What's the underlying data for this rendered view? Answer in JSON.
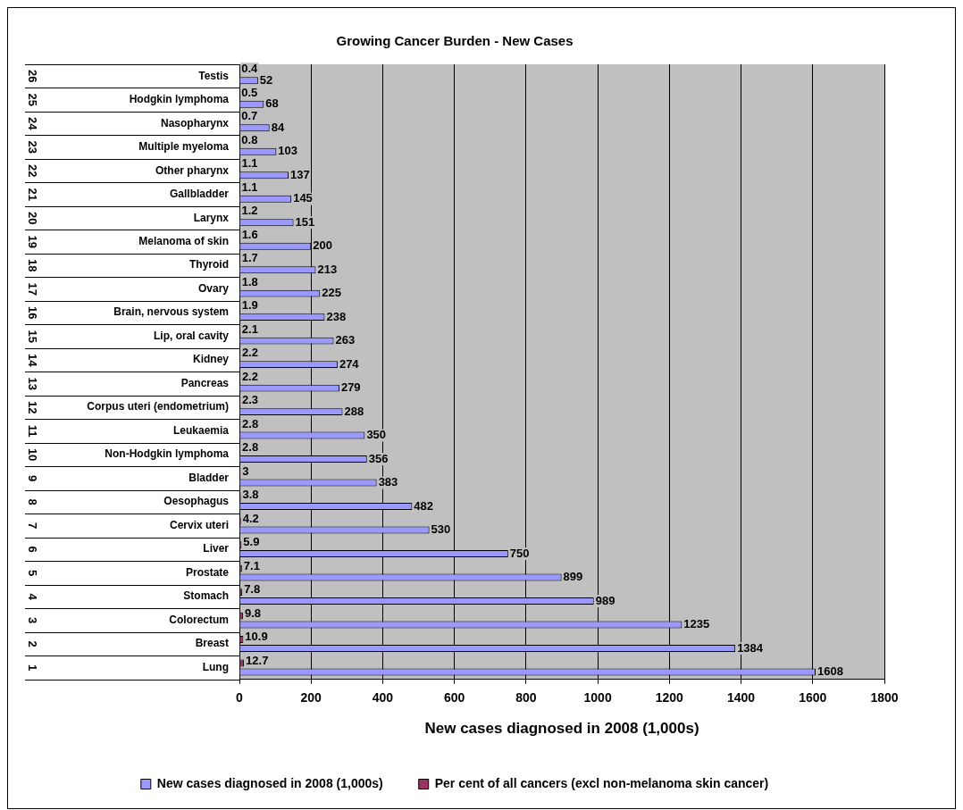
{
  "chart_data": {
    "type": "bar",
    "orientation": "horizontal",
    "title": "Growing Cancer Burden - New Cases",
    "xlabel": "New cases diagnosed in 2008 (1,000s)",
    "categories": [
      "Testis",
      "Hodgkin lymphoma",
      "Nasopharynx",
      "Multiple myeloma",
      "Other pharynx",
      "Gallbladder",
      "Larynx",
      "Melanoma of skin",
      "Thyroid",
      "Ovary",
      "Brain, nervous system",
      "Lip, oral cavity",
      "Kidney",
      "Pancreas",
      "Corpus uteri (endometrium)",
      "Leukaemia",
      "Non-Hodgkin lymphoma",
      "Bladder",
      "Oesophagus",
      "Cervix uteri",
      "Liver",
      "Prostate",
      "Stomach",
      "Colorectum",
      "Breast",
      "Lung"
    ],
    "series": [
      {
        "name": "New cases diagnosed in 2008 (1,000s)",
        "color": "#9999ff",
        "values": [
          52,
          68,
          84,
          103,
          137,
          145,
          151,
          200,
          213,
          225,
          238,
          263,
          274,
          279,
          288,
          350,
          356,
          383,
          482,
          530,
          750,
          899,
          989,
          1235,
          1384,
          1608
        ]
      },
      {
        "name": "Per cent of all cancers (excl non-melanoma skin cancer)",
        "color": "#993366",
        "values": [
          0.4,
          0.5,
          0.7,
          0.8,
          1.1,
          1.1,
          1.2,
          1.6,
          1.7,
          1.8,
          1.9,
          2.1,
          2.2,
          2.2,
          2.3,
          2.8,
          2.8,
          3,
          3.8,
          4.2,
          5.9,
          7.1,
          7.8,
          9.8,
          10.9,
          12.7
        ]
      }
    ],
    "xlim": [
      0,
      1800
    ],
    "xticks": [
      0,
      200,
      400,
      600,
      800,
      1000,
      1200,
      1400,
      1600,
      1800
    ],
    "grid": "x",
    "legend": "bottom",
    "data_labels": true,
    "annotations": [
      "26",
      "25",
      "24",
      "23",
      "22",
      "21",
      "20",
      "19",
      "18",
      "17",
      "16",
      "15",
      "14",
      "13",
      "12",
      "11",
      "10",
      "9",
      "8",
      "7",
      "6",
      "5",
      "4",
      "3",
      "2",
      "1"
    ]
  }
}
